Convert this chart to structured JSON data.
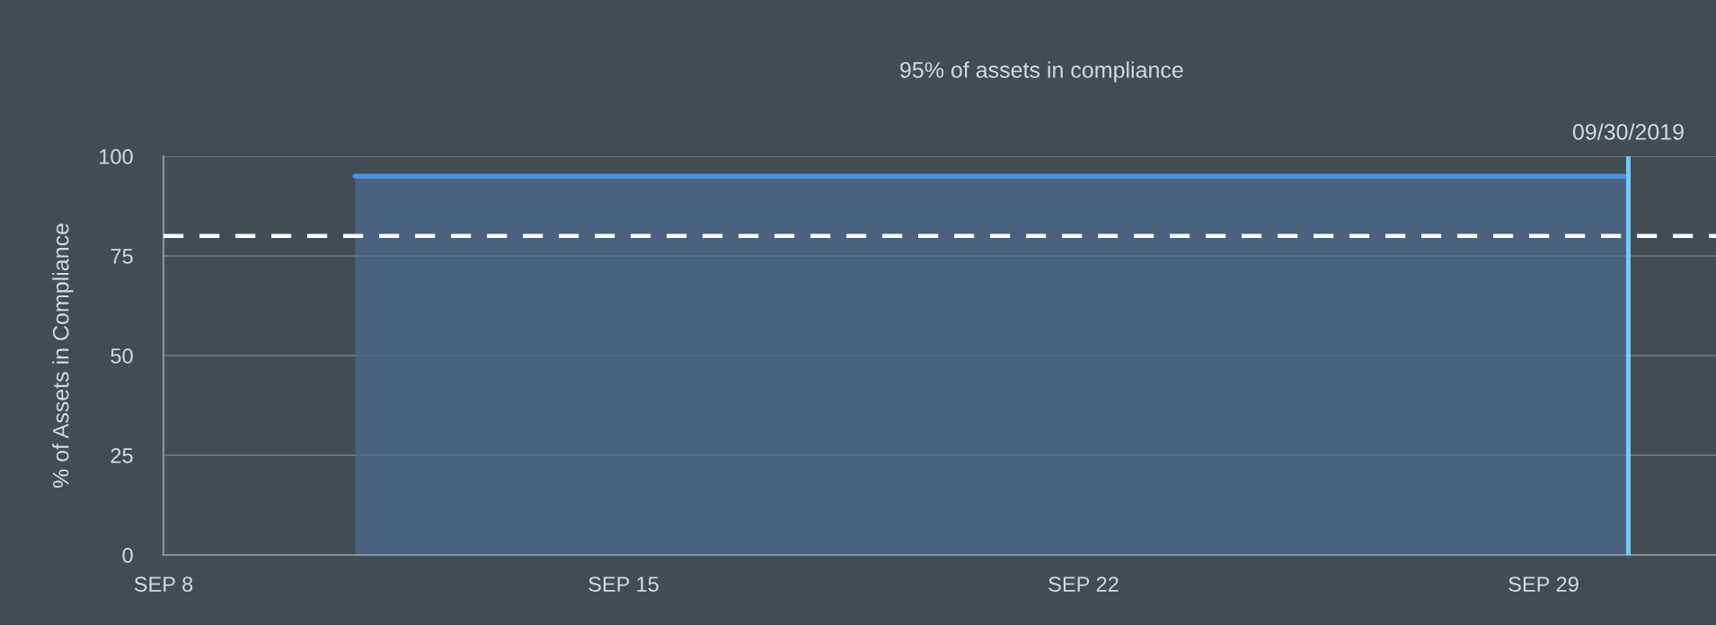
{
  "chart_data": {
    "type": "area",
    "title": "95% of assets in compliance",
    "ylabel": "% of Assets in Compliance",
    "series": [
      {
        "color": "#4a90e8",
        "x": [
          "2019-09-10T22:00",
          "2019-09-30T07:00"
        ],
        "values": [
          95,
          95
        ]
      }
    ],
    "xlim": [
      "2019-09-08T00:00",
      "2019-10-01T15:00"
    ],
    "xticks": [
      {
        "value": "2019-09-08",
        "label": "SEP 8"
      },
      {
        "value": "2019-09-15",
        "label": "SEP 15"
      },
      {
        "value": "2019-09-22",
        "label": "SEP 22"
      },
      {
        "value": "2019-09-29",
        "label": "SEP 29"
      }
    ],
    "ylim": [
      0,
      100
    ],
    "yticks": [
      0,
      25,
      50,
      75,
      100
    ],
    "grid": "y",
    "ref_lines": [
      {
        "axis": "y",
        "value": 80,
        "color": "#ffffff",
        "line_style": "dashed"
      },
      {
        "axis": "x",
        "value": "2019-09-30T07:00",
        "label": "09/30/2019",
        "color": "#6ecbff",
        "line_style": "solid"
      }
    ]
  }
}
